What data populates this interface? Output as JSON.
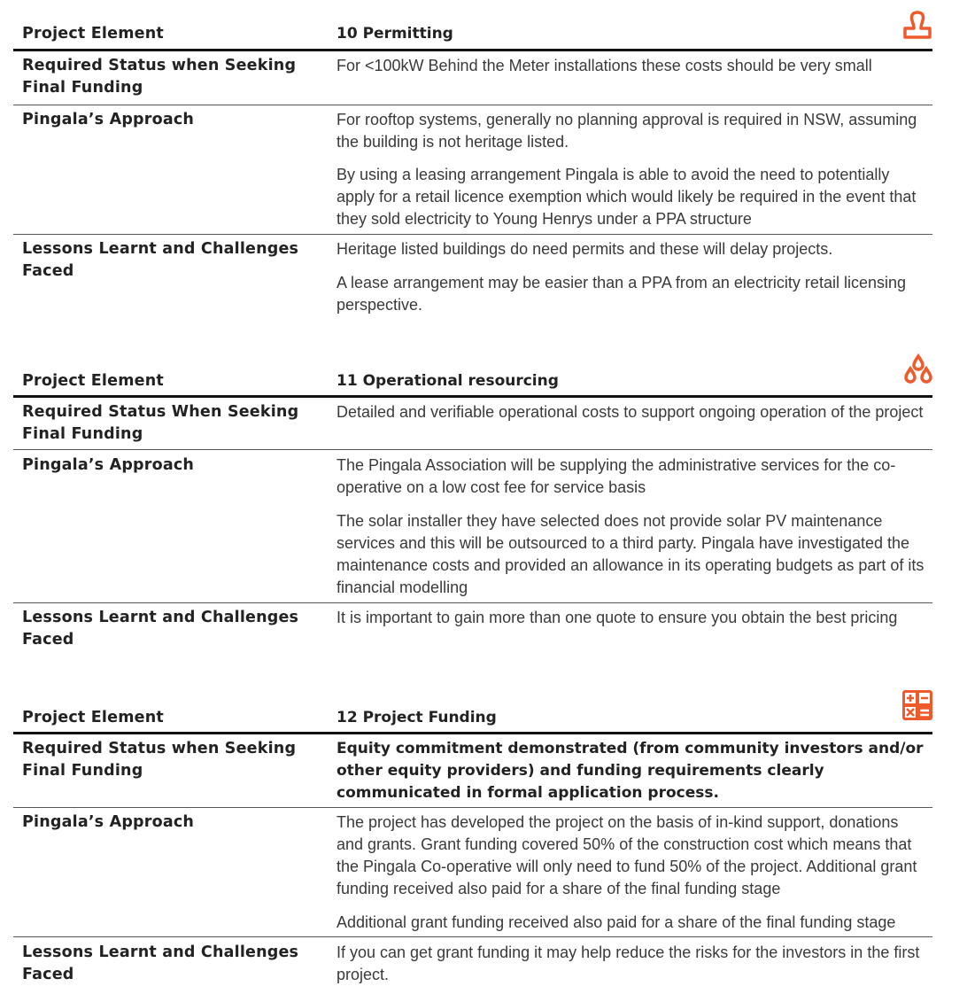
{
  "accent": "#ee5a2c",
  "sections": [
    {
      "label": "Project Element",
      "title": "10 Permitting",
      "icon": "stamp-icon",
      "rows": [
        {
          "label": "Required Status when Seeking Final Funding",
          "paras": [
            "For <100kW Behind the Meter installations these costs should be very small"
          ]
        },
        {
          "label": "Pingala’s Approach",
          "paras": [
            "For rooftop systems, generally no planning approval is required in NSW, assuming the building is not heritage listed.",
            "By using a leasing arrangement Pingala is able to avoid the need to potentially apply for a retail licence exemption which would likely be required in the event that they sold electricity to Young Henrys under a PPA structure"
          ]
        },
        {
          "label": "Lessons Learnt and Challenges Faced",
          "paras": [
            "Heritage listed buildings do need permits and these will delay projects.",
            "A lease arrangement may be easier than a PPA from an electricity retail licensing perspective."
          ]
        }
      ]
    },
    {
      "label": "Project Element",
      "title": "11 Operational resourcing",
      "icon": "drops-icon",
      "rows": [
        {
          "label": "Required Status When Seeking Final Funding",
          "paras": [
            "Detailed and verifiable operational costs to support ongoing operation of the project"
          ]
        },
        {
          "label": "Pingala’s Approach",
          "paras": [
            "The Pingala Association will be supplying the administrative services for the co-operative on a low cost fee for service basis",
            "The solar installer they have selected does not provide solar PV maintenance services and this will be outsourced to a third party. Pingala have investigated the maintenance costs and provided an allowance in its operating budgets as part of its financial modelling"
          ]
        },
        {
          "label": "Lessons Learnt and Challenges Faced",
          "paras": [
            "It is important to gain more than one quote to ensure you obtain the best pricing"
          ]
        }
      ]
    },
    {
      "label": "Project Element",
      "title": "12 Project Funding",
      "icon": "calculator-icon",
      "rows": [
        {
          "label": "Required Status when Seeking Final Funding",
          "paras": [
            "Equity commitment demonstrated (from community investors and/or other equity providers) and funding requirements clearly communicated in formal application process."
          ]
        },
        {
          "label": "Pingala’s Approach",
          "paras": [
            "The project has developed the project on the basis of in-kind support, donations and grants. Grant funding covered 50% of the construction cost which means that the Pingala Co-operative will only need to fund 50% of the project. Additional grant funding received also paid for a share of the final funding stage",
            "Additional grant funding received also paid for a share of the final funding stage"
          ]
        },
        {
          "label": "Lessons Learnt and Challenges Faced",
          "paras": [
            "If you can get grant funding it may help reduce the risks for the investors in the first project."
          ]
        }
      ]
    }
  ]
}
